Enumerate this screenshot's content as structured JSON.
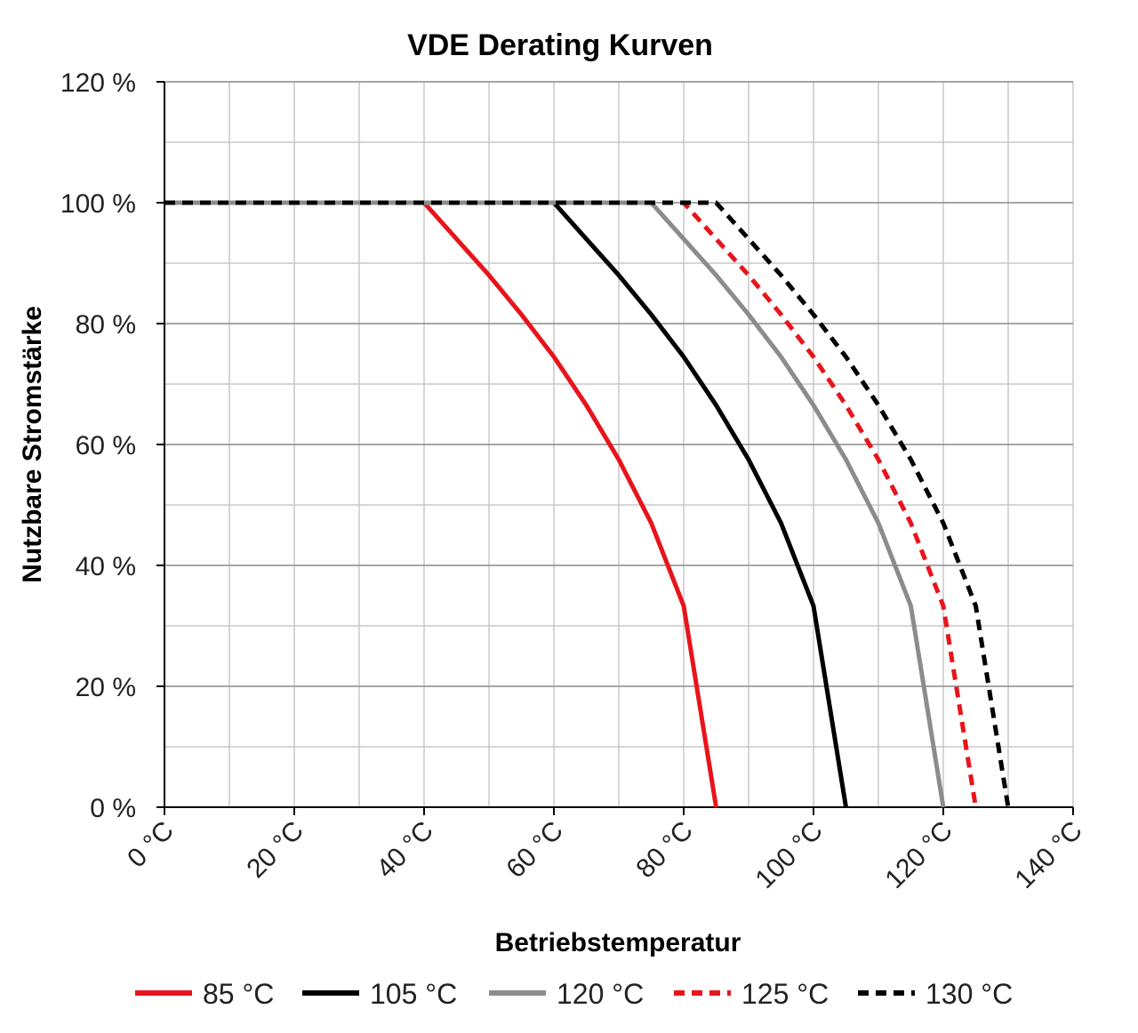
{
  "chart_data": {
    "type": "line",
    "title": "VDE Derating Kurven",
    "xlabel": "Betriebstemperatur",
    "ylabel": "Nutzbare Stromstärke",
    "xlim": [
      0,
      140
    ],
    "ylim": [
      0,
      120
    ],
    "x_ticks": [
      0,
      20,
      40,
      60,
      80,
      100,
      120,
      140
    ],
    "x_tick_labels": [
      "0 °C",
      "20 °C",
      "40 °C",
      "60 °C",
      "80 °C",
      "100 °C",
      "120 °C",
      "140 °C"
    ],
    "y_ticks": [
      0,
      20,
      40,
      60,
      80,
      100,
      120
    ],
    "y_tick_labels": [
      "0 %",
      "20 %",
      "40 %",
      "60 %",
      "80 %",
      "100 %",
      "120 %"
    ],
    "x_minor_step": 10,
    "y_minor_step": 10,
    "grid": true,
    "legend_position": "bottom",
    "series": [
      {
        "name": "85 °C",
        "color": "#e8141b",
        "dashed": false,
        "points": [
          [
            0,
            100
          ],
          [
            40,
            100
          ],
          [
            45,
            94
          ],
          [
            50,
            88
          ],
          [
            55,
            81.5
          ],
          [
            60,
            74.5
          ],
          [
            65,
            66.5
          ],
          [
            70,
            57.5
          ],
          [
            75,
            47
          ],
          [
            80,
            33.3
          ],
          [
            85,
            0
          ]
        ]
      },
      {
        "name": "105 °C",
        "color": "#000000",
        "dashed": false,
        "points": [
          [
            0,
            100
          ],
          [
            60,
            100
          ],
          [
            65,
            94
          ],
          [
            70,
            88
          ],
          [
            75,
            81.5
          ],
          [
            80,
            74.5
          ],
          [
            85,
            66.5
          ],
          [
            90,
            57.5
          ],
          [
            95,
            47
          ],
          [
            100,
            33.3
          ],
          [
            105,
            0
          ]
        ]
      },
      {
        "name": "120 °C",
        "color": "#8c8c8c",
        "dashed": false,
        "points": [
          [
            0,
            100
          ],
          [
            75,
            100
          ],
          [
            80,
            94
          ],
          [
            85,
            88
          ],
          [
            90,
            81.5
          ],
          [
            95,
            74.5
          ],
          [
            100,
            66.5
          ],
          [
            105,
            57.5
          ],
          [
            110,
            47
          ],
          [
            115,
            33.3
          ],
          [
            120,
            0
          ]
        ]
      },
      {
        "name": "125 °C",
        "color": "#e8141b",
        "dashed": true,
        "points": [
          [
            0,
            100
          ],
          [
            80,
            100
          ],
          [
            85,
            94
          ],
          [
            90,
            88
          ],
          [
            95,
            81.5
          ],
          [
            100,
            74.5
          ],
          [
            105,
            66.5
          ],
          [
            110,
            57.5
          ],
          [
            115,
            47
          ],
          [
            120,
            33.3
          ],
          [
            125,
            0
          ]
        ]
      },
      {
        "name": "130 °C",
        "color": "#000000",
        "dashed": true,
        "points": [
          [
            0,
            100
          ],
          [
            85,
            100
          ],
          [
            90,
            94
          ],
          [
            95,
            88
          ],
          [
            100,
            81.5
          ],
          [
            105,
            74.5
          ],
          [
            110,
            66.5
          ],
          [
            115,
            57.5
          ],
          [
            120,
            47
          ],
          [
            125,
            33.3
          ],
          [
            130,
            0
          ]
        ]
      }
    ]
  }
}
